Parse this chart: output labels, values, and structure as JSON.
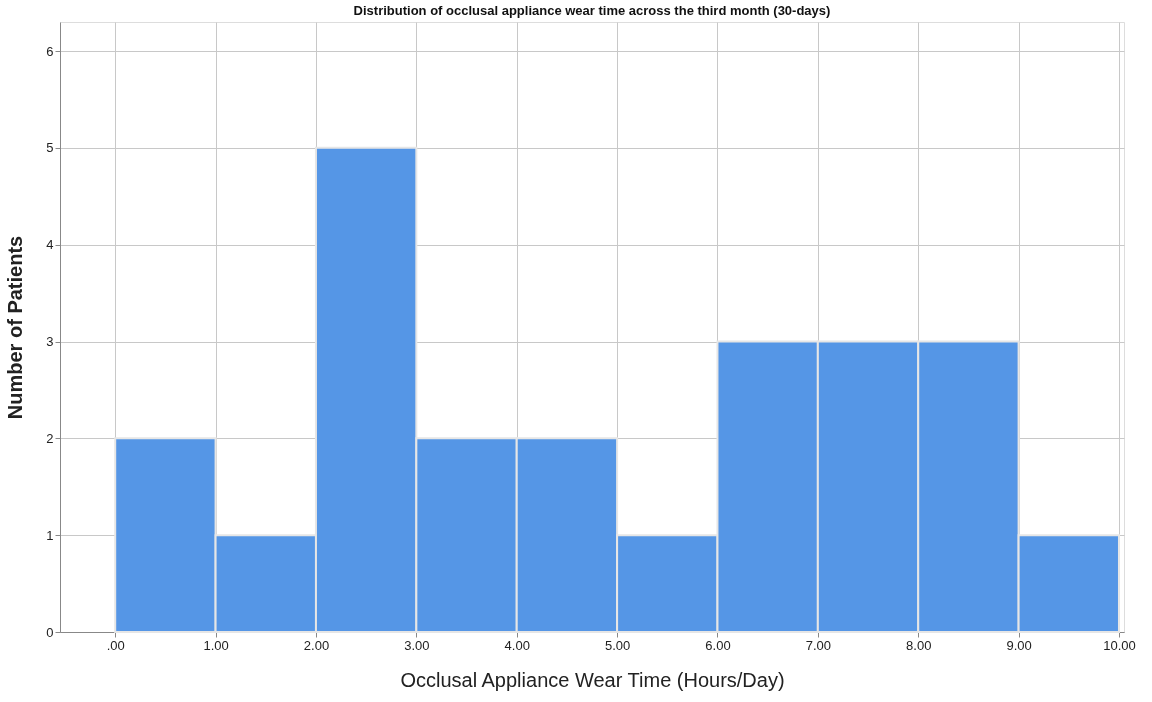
{
  "chart_data": {
    "type": "histogram",
    "title": "Distribution of occlusal appliance wear time across the third month (30-days)",
    "xlabel": "Occlusal Appliance Wear Time (Hours/Day)",
    "ylabel": "Number of Patients",
    "bins": [
      0,
      1,
      2,
      3,
      4,
      5,
      6,
      7,
      8,
      9,
      10
    ],
    "values": [
      2,
      1,
      5,
      2,
      2,
      1,
      3,
      3,
      3,
      1
    ],
    "color": "#5596e6",
    "xlim": [
      -0.55,
      10.05
    ],
    "xticks": [
      {
        "value": 0,
        "label": ".00"
      },
      {
        "value": 1,
        "label": "1.00"
      },
      {
        "value": 2,
        "label": "2.00"
      },
      {
        "value": 3,
        "label": "3.00"
      },
      {
        "value": 4,
        "label": "4.00"
      },
      {
        "value": 5,
        "label": "5.00"
      },
      {
        "value": 6,
        "label": "6.00"
      },
      {
        "value": 7,
        "label": "7.00"
      },
      {
        "value": 8,
        "label": "8.00"
      },
      {
        "value": 9,
        "label": "9.00"
      },
      {
        "value": 10,
        "label": "10.00"
      }
    ],
    "ylim": [
      0,
      6.3
    ],
    "yticks": [
      0,
      1,
      2,
      3,
      4,
      5,
      6
    ],
    "grid": true
  }
}
